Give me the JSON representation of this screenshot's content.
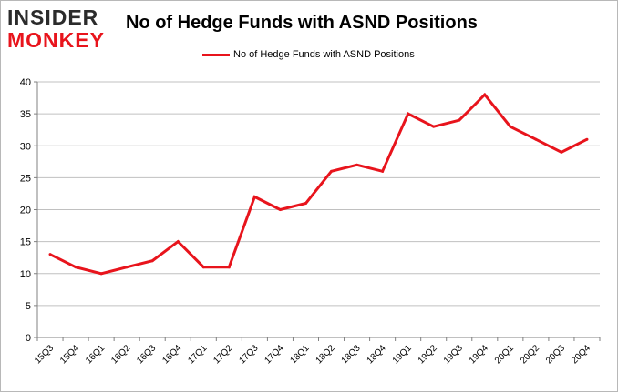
{
  "logo": {
    "line1": "INSIDER",
    "line2": "MONKEY"
  },
  "colors": {
    "series": "#e8141c",
    "grid": "#c0c0c0",
    "axis": "#808080"
  },
  "chart_data": {
    "type": "line",
    "title": "No of Hedge Funds with ASND Positions",
    "xlabel": "",
    "ylabel": "",
    "ylim": [
      0,
      40
    ],
    "yticks": [
      0,
      5,
      10,
      15,
      20,
      25,
      30,
      35,
      40
    ],
    "grid": true,
    "legend_position": "top-center",
    "categories": [
      "15Q3",
      "15Q4",
      "16Q1",
      "16Q2",
      "16Q3",
      "16Q4",
      "17Q1",
      "17Q2",
      "17Q3",
      "17Q4",
      "18Q1",
      "18Q2",
      "18Q3",
      "18Q4",
      "19Q1",
      "19Q2",
      "19Q3",
      "19Q4",
      "20Q1",
      "20Q2",
      "20Q3",
      "20Q4"
    ],
    "series": [
      {
        "name": "No of Hedge Funds with ASND Positions",
        "values": [
          13,
          11,
          10,
          11,
          12,
          15,
          11,
          11,
          22,
          20,
          21,
          26,
          27,
          26,
          35,
          33,
          34,
          38,
          33,
          31,
          29,
          31
        ]
      }
    ]
  }
}
